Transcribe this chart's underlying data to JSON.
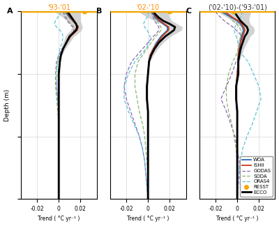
{
  "title_A": "'93-'01",
  "title_B": "'02-'10",
  "title_C": "('02-'10)-('93-'01)",
  "xlabel": "Trend ( °C yr⁻¹ )",
  "ylabel": "Depth (m)",
  "xlim": [
    -0.035,
    0.035
  ],
  "ylim": [
    1500,
    0
  ],
  "xticks": [
    -0.02,
    0,
    0.02
  ],
  "yticks": [
    0,
    500,
    1000,
    1500
  ],
  "colors": {
    "WOA": "#1f6db5",
    "ISHII": "#cc3a1e",
    "GODAS": "#8b64b8",
    "SODA": "#8ab56b",
    "ORAS4": "#5bc4d8",
    "RESST": "#f5a800",
    "ECCO": "#000000"
  },
  "panel_labels": [
    "A",
    "B",
    "C"
  ],
  "background_color": "#ffffff"
}
